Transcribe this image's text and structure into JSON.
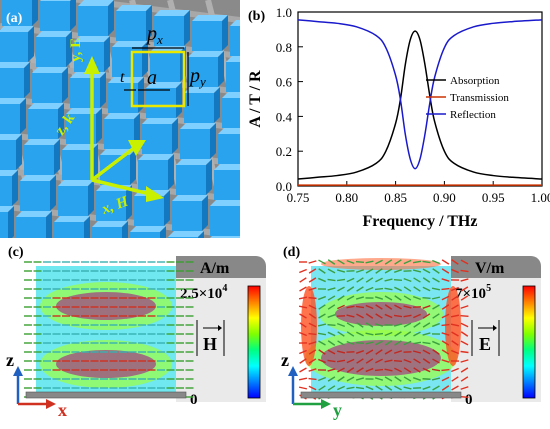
{
  "panels": {
    "a": {
      "label": "(a)",
      "dims": {
        "px": "p",
        "px_sub": "x",
        "py": "p",
        "py_sub": "y",
        "a": "a",
        "t": "t"
      },
      "axes": {
        "y": "y, E",
        "z": "z, k",
        "x": "x, H"
      }
    },
    "b": {
      "label": "(b)"
    },
    "c": {
      "label": "(c)",
      "unit": "A/m",
      "max_label_base": "2.5×10",
      "max_label_exp": "4",
      "min_label": "0",
      "field_symbol": "H",
      "axis_z": "z",
      "axis_x": "x"
    },
    "d": {
      "label": "(d)",
      "unit": "V/m",
      "max_label_base": "7×10",
      "max_label_exp": "5",
      "min_label": "0",
      "field_symbol": "E",
      "axis_z": "z",
      "axis_y": "y"
    }
  },
  "colors": {
    "absorption": "#000000",
    "transmission": "#cc3300",
    "reflection": "#1a1acc",
    "cube": "#2aa3ee",
    "gridbg": "#8a8a8a",
    "dimline": "#e8e800",
    "axisarrow": "#c8f000"
  },
  "chart_data": {
    "type": "line",
    "xlabel": "Frequency / THz",
    "ylabel": "A / T / R",
    "xlim": [
      0.75,
      1.0
    ],
    "ylim": [
      0,
      1.0
    ],
    "xticks": [
      "0.75",
      "0.80",
      "0.85",
      "0.90",
      "0.95",
      "1.00"
    ],
    "yticks": [
      "0.0",
      "0.2",
      "0.4",
      "0.6",
      "0.8",
      "1.0"
    ],
    "legend_placement": "right",
    "x": [
      0.75,
      0.77,
      0.79,
      0.81,
      0.83,
      0.84,
      0.85,
      0.855,
      0.86,
      0.865,
      0.87,
      0.875,
      0.88,
      0.885,
      0.89,
      0.9,
      0.91,
      0.93,
      0.95,
      0.97,
      1.0
    ],
    "series": [
      {
        "name": "Absorption",
        "values": [
          0.04,
          0.05,
          0.06,
          0.08,
          0.13,
          0.2,
          0.36,
          0.5,
          0.7,
          0.84,
          0.89,
          0.84,
          0.7,
          0.52,
          0.37,
          0.2,
          0.13,
          0.08,
          0.06,
          0.05,
          0.04
        ]
      },
      {
        "name": "Transmission",
        "values": [
          0.005,
          0.005,
          0.005,
          0.005,
          0.005,
          0.005,
          0.005,
          0.005,
          0.005,
          0.005,
          0.005,
          0.005,
          0.005,
          0.005,
          0.005,
          0.005,
          0.005,
          0.005,
          0.005,
          0.005,
          0.005
        ]
      },
      {
        "name": "Reflection",
        "values": [
          0.955,
          0.945,
          0.935,
          0.915,
          0.865,
          0.795,
          0.635,
          0.495,
          0.295,
          0.155,
          0.1,
          0.155,
          0.295,
          0.475,
          0.625,
          0.795,
          0.865,
          0.915,
          0.935,
          0.945,
          0.955
        ]
      }
    ]
  }
}
